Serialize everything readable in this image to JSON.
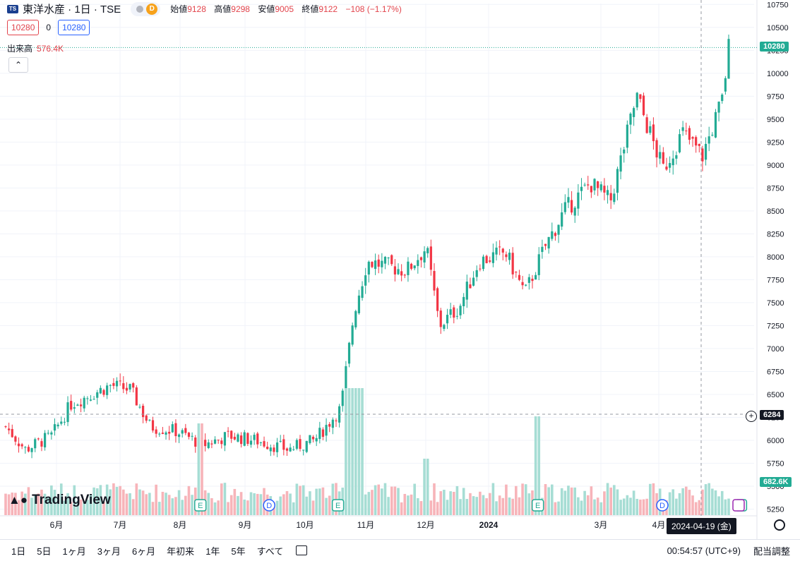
{
  "header": {
    "symbol_icon": "tse-logo-icon",
    "title": "東洋水産 · 1日 · TSE",
    "pill_badge": "D",
    "ohlc": [
      {
        "label": "始値",
        "value": "9128"
      },
      {
        "label": "高値",
        "value": "9298"
      },
      {
        "label": "安値",
        "value": "9005"
      },
      {
        "label": "終値",
        "value": "9122"
      }
    ],
    "change": "−108 (−1.17%)"
  },
  "order": {
    "sell": "10280",
    "spread": "0",
    "buy": "10280"
  },
  "volume_label": {
    "label": "出来高",
    "value": "576.4K"
  },
  "collapse_icon": "chevron-up-icon",
  "logo_text": "TradingView",
  "x_axis_labels": [
    "6月",
    "7月",
    "8月",
    "9月",
    "10月",
    "11月",
    "12月",
    "2024",
    "3月",
    "4月"
  ],
  "crosshair": {
    "date": "2024-04-19 (金)",
    "price": "6284",
    "plus_icon": "plus-circle-icon"
  },
  "last_price_tag": "10280",
  "volume_tag": "682.6K",
  "colors": {
    "up": "#22ab94",
    "down": "#f23645",
    "vol_up": "#a6ddd4",
    "vol_down": "#f7b4b9",
    "accent": "#2962ff"
  },
  "bottom_bar": {
    "ranges": [
      "1日",
      "5日",
      "1ヶ月",
      "3ヶ月",
      "6ヶ月",
      "年初来",
      "1年",
      "5年",
      "すべて"
    ],
    "clock": "00:54:57 (UTC+9)",
    "adjust": "配当調整",
    "calendar_icon": "calendar-range-icon",
    "settings_icon": "gear-icon"
  },
  "event_markers": [
    {
      "type": "E",
      "month_pos": 2.95
    },
    {
      "type": "D",
      "month_pos": 4.0
    },
    {
      "type": "E",
      "month_pos": 5.05
    },
    {
      "type": "E",
      "month_pos": 8.1
    },
    {
      "type": "D",
      "month_pos": 10.0
    },
    {
      "type": "E",
      "month_pos": 11.2
    }
  ],
  "chart_data": {
    "type": "candlestick",
    "price_axis": {
      "ticks": [
        5250,
        5500,
        5750,
        6000,
        6250,
        6500,
        6750,
        7000,
        7250,
        7500,
        7750,
        8000,
        8250,
        8500,
        8750,
        9000,
        9250,
        9500,
        9750,
        10000,
        10250,
        10500,
        10750
      ],
      "ylim": [
        5200,
        10760
      ]
    },
    "series_close_keypoints": [
      {
        "t": 0.0,
        "p": 6150
      },
      {
        "t": 0.3,
        "p": 5900
      },
      {
        "t": 0.7,
        "p": 6050
      },
      {
        "t": 1.0,
        "p": 6400
      },
      {
        "t": 1.6,
        "p": 6600
      },
      {
        "t": 1.9,
        "p": 6550
      },
      {
        "t": 2.2,
        "p": 6150
      },
      {
        "t": 2.6,
        "p": 6100
      },
      {
        "t": 3.0,
        "p": 5950
      },
      {
        "t": 3.4,
        "p": 6050
      },
      {
        "t": 3.8,
        "p": 6000
      },
      {
        "t": 4.3,
        "p": 5900
      },
      {
        "t": 4.7,
        "p": 6000
      },
      {
        "t": 5.1,
        "p": 6350
      },
      {
        "t": 5.3,
        "p": 7400
      },
      {
        "t": 5.5,
        "p": 7950
      },
      {
        "t": 6.1,
        "p": 7850
      },
      {
        "t": 6.4,
        "p": 8100
      },
      {
        "t": 6.6,
        "p": 7250
      },
      {
        "t": 6.9,
        "p": 7450
      },
      {
        "t": 7.2,
        "p": 7950
      },
      {
        "t": 7.6,
        "p": 8050
      },
      {
        "t": 7.9,
        "p": 7600
      },
      {
        "t": 8.2,
        "p": 8100
      },
      {
        "t": 8.5,
        "p": 8500
      },
      {
        "t": 8.9,
        "p": 8800
      },
      {
        "t": 9.2,
        "p": 8600
      },
      {
        "t": 9.6,
        "p": 9750
      },
      {
        "t": 10.0,
        "p": 8950
      },
      {
        "t": 10.3,
        "p": 9350
      },
      {
        "t": 10.6,
        "p": 9100
      },
      {
        "t": 10.9,
        "p": 9700
      },
      {
        "t": 11.0,
        "p": 10280
      }
    ]
  }
}
